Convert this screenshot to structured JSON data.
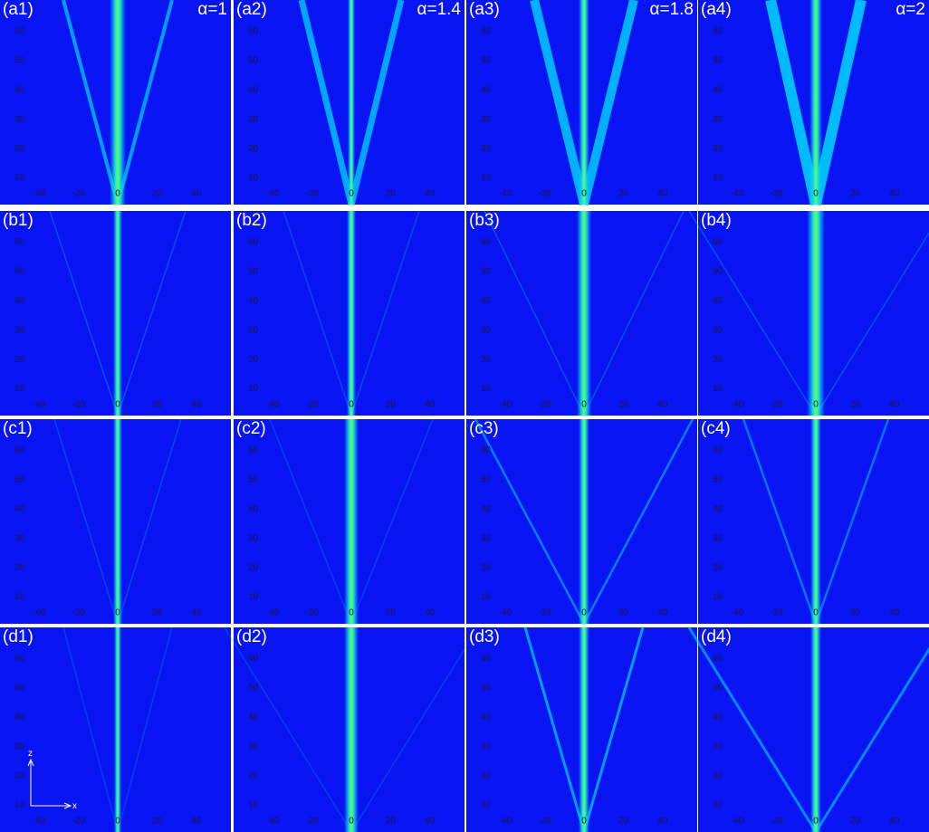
{
  "panels": [
    {
      "label": "(a1)",
      "alpha": "α=1"
    },
    {
      "label": "(a2)",
      "alpha": "α=1.4"
    },
    {
      "label": "(a3)",
      "alpha": "α=1.8"
    },
    {
      "label": "(a4)",
      "alpha": "α=2"
    },
    {
      "label": "(b1)"
    },
    {
      "label": "(b2)"
    },
    {
      "label": "(b3)"
    },
    {
      "label": "(b4)"
    },
    {
      "label": "(c1)"
    },
    {
      "label": "(c2)"
    },
    {
      "label": "(c3)"
    },
    {
      "label": "(c4)"
    },
    {
      "label": "(d1)"
    },
    {
      "label": "(d2)"
    },
    {
      "label": "(d3)"
    },
    {
      "label": "(d4)"
    }
  ],
  "x_ticks": [
    "-40",
    "-20",
    "0",
    "20",
    "40"
  ],
  "z_ticks": [
    "10",
    "20",
    "30",
    "40",
    "50",
    "60"
  ],
  "axis_labels": {
    "x": "x",
    "z": "z"
  }
}
